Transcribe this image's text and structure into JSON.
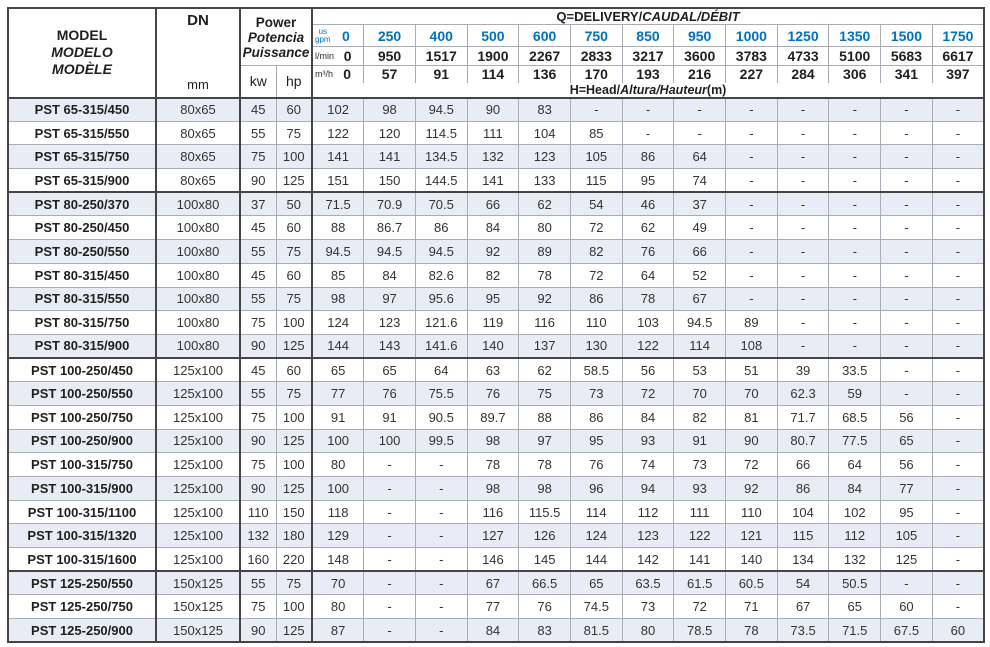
{
  "doc": {
    "type": "pump-performance-table",
    "colors": {
      "accent_blue": "#0070c0",
      "row_stripe": "#e9ecf4",
      "grid_line": "#a8acb4",
      "heavy_border": "#454545"
    }
  },
  "table": {
    "header": {
      "model_lines": [
        "MODEL",
        "MODELO",
        "MODÈLE"
      ],
      "dn_label": "DN",
      "dn_unit": "mm",
      "power_lines": [
        "Power",
        "Potencia",
        "Puissance"
      ],
      "kw_label": "kw",
      "hp_label": "hp",
      "q_title_normal": "Q=DELIVERY/",
      "q_title_italic": "CAUDAL/DÉBIT",
      "h_title_normal": "H=Head/",
      "h_title_italic": "Altura/Hauteur",
      "h_title_suffix": "(m)",
      "unit_gpm_top": "us",
      "unit_gpm_bottom": "gpm",
      "unit_lmin": "l/min",
      "unit_m3h": "m³/h",
      "gpm": [
        "0",
        "250",
        "400",
        "500",
        "600",
        "750",
        "850",
        "950",
        "1000",
        "1250",
        "1350",
        "1500",
        "1750"
      ],
      "lmin": [
        "0",
        "950",
        "1517",
        "1900",
        "2267",
        "2833",
        "3217",
        "3600",
        "3783",
        "4733",
        "5100",
        "5683",
        "6617"
      ],
      "m3h": [
        "0",
        "57",
        "91",
        "114",
        "136",
        "170",
        "193",
        "216",
        "227",
        "284",
        "306",
        "341",
        "397"
      ]
    },
    "rows": [
      {
        "model": "PST 65-315/450",
        "dn": "80x65",
        "kw": "45",
        "hp": "60",
        "h": [
          "102",
          "98",
          "94.5",
          "90",
          "83",
          "-",
          "-",
          "-",
          "-",
          "-",
          "-",
          "-",
          "-"
        ],
        "group": false
      },
      {
        "model": "PST 65-315/550",
        "dn": "80x65",
        "kw": "55",
        "hp": "75",
        "h": [
          "122",
          "120",
          "114.5",
          "111",
          "104",
          "85",
          "-",
          "-",
          "-",
          "-",
          "-",
          "-",
          "-"
        ],
        "group": false
      },
      {
        "model": "PST 65-315/750",
        "dn": "80x65",
        "kw": "75",
        "hp": "100",
        "h": [
          "141",
          "141",
          "134.5",
          "132",
          "123",
          "105",
          "86",
          "64",
          "-",
          "-",
          "-",
          "-",
          "-"
        ],
        "group": false
      },
      {
        "model": "PST 65-315/900",
        "dn": "80x65",
        "kw": "90",
        "hp": "125",
        "h": [
          "151",
          "150",
          "144.5",
          "141",
          "133",
          "115",
          "95",
          "74",
          "-",
          "-",
          "-",
          "-",
          "-"
        ],
        "group": false
      },
      {
        "model": "PST 80-250/370",
        "dn": "100x80",
        "kw": "37",
        "hp": "50",
        "h": [
          "71.5",
          "70.9",
          "70.5",
          "66",
          "62",
          "54",
          "46",
          "37",
          "-",
          "-",
          "-",
          "-",
          "-"
        ],
        "group": true
      },
      {
        "model": "PST 80-250/450",
        "dn": "100x80",
        "kw": "45",
        "hp": "60",
        "h": [
          "88",
          "86.7",
          "86",
          "84",
          "80",
          "72",
          "62",
          "49",
          "-",
          "-",
          "-",
          "-",
          "-"
        ],
        "group": false
      },
      {
        "model": "PST 80-250/550",
        "dn": "100x80",
        "kw": "55",
        "hp": "75",
        "h": [
          "94.5",
          "94.5",
          "94.5",
          "92",
          "89",
          "82",
          "76",
          "66",
          "-",
          "-",
          "-",
          "-",
          "-"
        ],
        "group": false
      },
      {
        "model": "PST 80-315/450",
        "dn": "100x80",
        "kw": "45",
        "hp": "60",
        "h": [
          "85",
          "84",
          "82.6",
          "82",
          "78",
          "72",
          "64",
          "52",
          "-",
          "-",
          "-",
          "-",
          "-"
        ],
        "group": false
      },
      {
        "model": "PST 80-315/550",
        "dn": "100x80",
        "kw": "55",
        "hp": "75",
        "h": [
          "98",
          "97",
          "95.6",
          "95",
          "92",
          "86",
          "78",
          "67",
          "-",
          "-",
          "-",
          "-",
          "-"
        ],
        "group": false
      },
      {
        "model": "PST 80-315/750",
        "dn": "100x80",
        "kw": "75",
        "hp": "100",
        "h": [
          "124",
          "123",
          "121.6",
          "119",
          "116",
          "110",
          "103",
          "94.5",
          "89",
          "-",
          "-",
          "-",
          "-"
        ],
        "group": false
      },
      {
        "model": "PST 80-315/900",
        "dn": "100x80",
        "kw": "90",
        "hp": "125",
        "h": [
          "144",
          "143",
          "141.6",
          "140",
          "137",
          "130",
          "122",
          "114",
          "108",
          "-",
          "-",
          "-",
          "-"
        ],
        "group": false
      },
      {
        "model": "PST 100-250/450",
        "dn": "125x100",
        "kw": "45",
        "hp": "60",
        "h": [
          "65",
          "65",
          "64",
          "63",
          "62",
          "58.5",
          "56",
          "53",
          "51",
          "39",
          "33.5",
          "-",
          "-"
        ],
        "group": true
      },
      {
        "model": "PST 100-250/550",
        "dn": "125x100",
        "kw": "55",
        "hp": "75",
        "h": [
          "77",
          "76",
          "75.5",
          "76",
          "75",
          "73",
          "72",
          "70",
          "70",
          "62.3",
          "59",
          "-",
          "-"
        ],
        "group": false
      },
      {
        "model": "PST 100-250/750",
        "dn": "125x100",
        "kw": "75",
        "hp": "100",
        "h": [
          "91",
          "91",
          "90.5",
          "89.7",
          "88",
          "86",
          "84",
          "82",
          "81",
          "71.7",
          "68.5",
          "56",
          "-"
        ],
        "group": false
      },
      {
        "model": "PST 100-250/900",
        "dn": "125x100",
        "kw": "90",
        "hp": "125",
        "h": [
          "100",
          "100",
          "99.5",
          "98",
          "97",
          "95",
          "93",
          "91",
          "90",
          "80.7",
          "77.5",
          "65",
          "-"
        ],
        "group": false
      },
      {
        "model": "PST 100-315/750",
        "dn": "125x100",
        "kw": "75",
        "hp": "100",
        "h": [
          "80",
          "-",
          "-",
          "78",
          "78",
          "76",
          "74",
          "73",
          "72",
          "66",
          "64",
          "56",
          "-"
        ],
        "group": false
      },
      {
        "model": "PST 100-315/900",
        "dn": "125x100",
        "kw": "90",
        "hp": "125",
        "h": [
          "100",
          "-",
          "-",
          "98",
          "98",
          "96",
          "94",
          "93",
          "92",
          "86",
          "84",
          "77",
          "-"
        ],
        "group": false
      },
      {
        "model": "PST 100-315/1100",
        "dn": "125x100",
        "kw": "110",
        "hp": "150",
        "h": [
          "118",
          "-",
          "-",
          "116",
          "115.5",
          "114",
          "112",
          "111",
          "110",
          "104",
          "102",
          "95",
          "-"
        ],
        "group": false
      },
      {
        "model": "PST 100-315/1320",
        "dn": "125x100",
        "kw": "132",
        "hp": "180",
        "h": [
          "129",
          "-",
          "-",
          "127",
          "126",
          "124",
          "123",
          "122",
          "121",
          "115",
          "112",
          "105",
          "-"
        ],
        "group": false
      },
      {
        "model": "PST 100-315/1600",
        "dn": "125x100",
        "kw": "160",
        "hp": "220",
        "h": [
          "148",
          "-",
          "-",
          "146",
          "145",
          "144",
          "142",
          "141",
          "140",
          "134",
          "132",
          "125",
          "-"
        ],
        "group": false
      },
      {
        "model": "PST 125-250/550",
        "dn": "150x125",
        "kw": "55",
        "hp": "75",
        "h": [
          "70",
          "-",
          "-",
          "67",
          "66.5",
          "65",
          "63.5",
          "61.5",
          "60.5",
          "54",
          "50.5",
          "-",
          "-"
        ],
        "group": true
      },
      {
        "model": "PST 125-250/750",
        "dn": "150x125",
        "kw": "75",
        "hp": "100",
        "h": [
          "80",
          "-",
          "-",
          "77",
          "76",
          "74.5",
          "73",
          "72",
          "71",
          "67",
          "65",
          "60",
          "-"
        ],
        "group": false
      },
      {
        "model": "PST 125-250/900",
        "dn": "150x125",
        "kw": "90",
        "hp": "125",
        "h": [
          "87",
          "-",
          "-",
          "84",
          "83",
          "81.5",
          "80",
          "78.5",
          "78",
          "73.5",
          "71.5",
          "67.5",
          "60"
        ],
        "group": false
      }
    ]
  }
}
